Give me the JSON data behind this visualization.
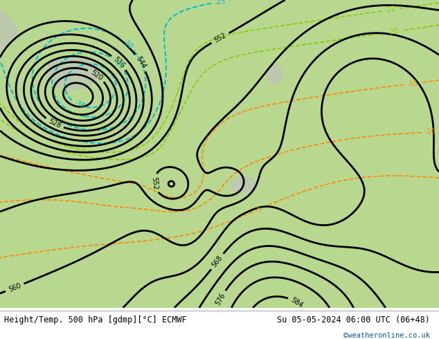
{
  "title_left": "Height/Temp. 500 hPa [gdmp][°C] ECMWF",
  "title_right": "Su 05-05-2024 06:00 UTC (06+48)",
  "copyright": "©weatheronline.co.uk",
  "fig_width": 6.34,
  "fig_height": 4.9,
  "dpi": 100,
  "copyright_color": "#0055aa",
  "land_color": "#b8d890",
  "sea_color": "#b8d890",
  "mountain_color": "#c8c8c8",
  "bg_color": "#b8d890",
  "geo_color": "#000000",
  "geo_linewidth": 2.0,
  "geo_label_fontsize": 7,
  "temp_cyan_color": "#00bbcc",
  "temp_cyan_linewidth": 1.4,
  "temp_green_color": "#88cc00",
  "temp_green_linewidth": 1.2,
  "temp_orange_color": "#ff8800",
  "temp_orange_linewidth": 1.2,
  "temp_label_fontsize": 7
}
